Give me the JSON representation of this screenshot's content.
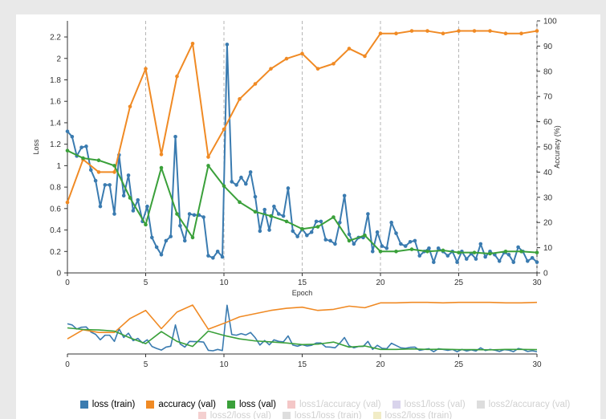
{
  "chart_data": [
    {
      "type": "line",
      "title": "",
      "xlabel": "Epoch",
      "ylabel": "Loss",
      "y2label": "Accuracy (%)",
      "xlim": [
        0,
        30
      ],
      "ylim": [
        0,
        2.35
      ],
      "y2lim": [
        0,
        100
      ],
      "x_ticks": [
        "0",
        "5",
        "10",
        "15",
        "20",
        "25",
        "30"
      ],
      "y_ticks": [
        "0",
        "0.2",
        "0.4",
        "0.6",
        "0.8",
        "1",
        "1.2",
        "1.4",
        "1.6",
        "1.8",
        "2",
        "2.2"
      ],
      "y2_ticks": [
        "0",
        "10",
        "20",
        "30",
        "40",
        "50",
        "60",
        "70",
        "80",
        "90",
        "100"
      ],
      "vertical_gridlines_dashed": [
        5,
        10,
        15,
        20,
        25,
        30
      ],
      "series": [
        {
          "name": "loss (train)",
          "color": "#3a7bb0",
          "axis": "left",
          "x": [
            0,
            0.3,
            0.6,
            0.9,
            1.2,
            1.5,
            1.8,
            2.1,
            2.4,
            2.7,
            3.0,
            3.3,
            3.6,
            3.9,
            4.2,
            4.5,
            4.8,
            5.1,
            5.4,
            5.7,
            6.0,
            6.3,
            6.6,
            6.9,
            7.2,
            7.5,
            7.8,
            8.1,
            8.4,
            8.7,
            9.0,
            9.3,
            9.6,
            9.9,
            10.2,
            10.5,
            10.8,
            11.1,
            11.4,
            11.7,
            12.0,
            12.3,
            12.6,
            12.9,
            13.2,
            13.5,
            13.8,
            14.1,
            14.4,
            14.7,
            15.0,
            15.3,
            15.6,
            15.9,
            16.2,
            16.5,
            16.8,
            17.1,
            17.4,
            17.7,
            18.0,
            18.3,
            18.6,
            18.9,
            19.2,
            19.5,
            19.8,
            20.1,
            20.4,
            20.7,
            21.0,
            21.3,
            21.6,
            21.9,
            22.2,
            22.5,
            22.8,
            23.1,
            23.4,
            23.7,
            24.0,
            24.3,
            24.6,
            24.9,
            25.2,
            25.5,
            25.8,
            26.1,
            26.4,
            26.7,
            27.0,
            27.3,
            27.6,
            27.9,
            28.2,
            28.5,
            28.8,
            29.1,
            29.4,
            29.7,
            30.0
          ],
          "values": [
            1.32,
            1.27,
            1.09,
            1.17,
            1.18,
            0.96,
            0.86,
            0.62,
            0.82,
            0.82,
            0.55,
            1.1,
            0.72,
            0.91,
            0.58,
            0.68,
            0.48,
            0.62,
            0.33,
            0.24,
            0.17,
            0.3,
            0.34,
            1.27,
            0.44,
            0.3,
            0.55,
            0.54,
            0.54,
            0.52,
            0.16,
            0.14,
            0.2,
            0.15,
            2.13,
            0.85,
            0.82,
            0.89,
            0.83,
            0.94,
            0.71,
            0.39,
            0.59,
            0.4,
            0.62,
            0.55,
            0.53,
            0.79,
            0.39,
            0.34,
            0.41,
            0.35,
            0.38,
            0.48,
            0.48,
            0.31,
            0.3,
            0.27,
            0.47,
            0.72,
            0.36,
            0.27,
            0.33,
            0.33,
            0.55,
            0.2,
            0.38,
            0.25,
            0.23,
            0.47,
            0.37,
            0.27,
            0.25,
            0.29,
            0.3,
            0.16,
            0.2,
            0.23,
            0.1,
            0.23,
            0.2,
            0.16,
            0.2,
            0.1,
            0.2,
            0.13,
            0.18,
            0.13,
            0.27,
            0.15,
            0.2,
            0.17,
            0.11,
            0.19,
            0.17,
            0.1,
            0.24,
            0.2,
            0.11,
            0.14,
            0.1
          ],
          "smooth_hint": "noisy"
        },
        {
          "name": "accuracy (val)",
          "color": "#f08a24",
          "axis": "right",
          "x": [
            0,
            1,
            2,
            3,
            4,
            5,
            6,
            7,
            8,
            9,
            10,
            11,
            12,
            13,
            14,
            15,
            16,
            17,
            18,
            19,
            20,
            21,
            22,
            23,
            24,
            25,
            26,
            27,
            28,
            29,
            30
          ],
          "values": [
            28,
            45,
            40,
            40,
            66,
            81,
            47,
            78,
            91,
            46,
            57,
            69,
            75,
            81,
            85,
            87,
            81,
            83,
            89,
            86,
            95,
            95,
            96,
            96,
            95,
            96,
            96,
            96,
            95,
            95,
            96
          ]
        },
        {
          "name": "loss (val)",
          "color": "#3aa03a",
          "axis": "left",
          "x": [
            0,
            1,
            2,
            3,
            4,
            5,
            6,
            7,
            8,
            9,
            10,
            11,
            12,
            13,
            14,
            15,
            16,
            17,
            18,
            19,
            20,
            21,
            22,
            23,
            24,
            25,
            26,
            27,
            28,
            29,
            30
          ],
          "values": [
            1.14,
            1.07,
            1.05,
            1.0,
            0.7,
            0.45,
            0.98,
            0.55,
            0.33,
            1.0,
            0.81,
            0.66,
            0.57,
            0.53,
            0.48,
            0.41,
            0.43,
            0.52,
            0.3,
            0.35,
            0.2,
            0.2,
            0.22,
            0.2,
            0.21,
            0.19,
            0.19,
            0.18,
            0.2,
            0.2,
            0.19
          ]
        }
      ]
    },
    {
      "type": "line",
      "title": "",
      "role": "navigator",
      "xlim": [
        0,
        30
      ],
      "x_ticks": [
        "0",
        "5",
        "10",
        "15",
        "20",
        "25",
        "30"
      ]
    }
  ],
  "legend": [
    {
      "label": "loss (train)",
      "color": "#3a7bb0",
      "active": true
    },
    {
      "label": "accuracy (val)",
      "color": "#f08a24",
      "active": true
    },
    {
      "label": "loss (val)",
      "color": "#3aa03a",
      "active": true
    },
    {
      "label": "loss1/accuracy (val)",
      "color": "#f4c7c7",
      "active": false
    },
    {
      "label": "loss1/loss (val)",
      "color": "#d9d4ec",
      "active": false
    },
    {
      "label": "loss2/accuracy (val)",
      "color": "#dddddd",
      "active": false
    },
    {
      "label": "loss2/loss (val)",
      "color": "#f4d0d0",
      "active": false
    },
    {
      "label": "loss1/loss (train)",
      "color": "#dedede",
      "active": false
    },
    {
      "label": "loss2/loss (train)",
      "color": "#f1ecc6",
      "active": false
    }
  ]
}
